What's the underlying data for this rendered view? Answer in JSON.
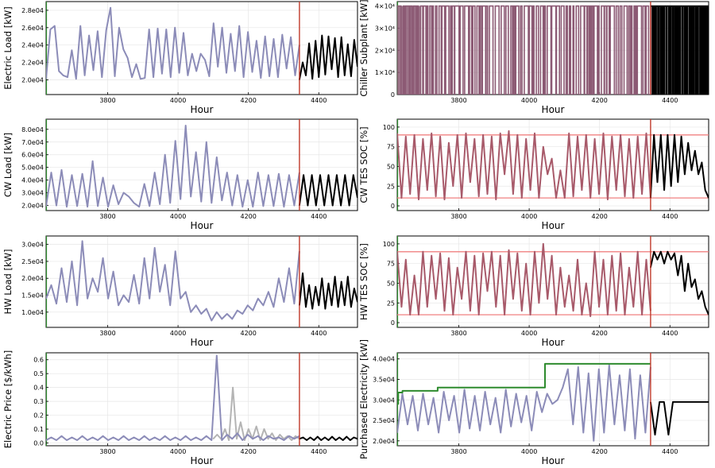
{
  "chart_data": [
    {
      "id": "electric-load",
      "type": "line",
      "ylabel": "Electric Load [kW]",
      "xlabel": "Hour",
      "xlim": [
        3625,
        4510
      ],
      "ylim": [
        18300,
        29000
      ],
      "xticks": [
        3800,
        4000,
        4200,
        4400
      ],
      "yticks": [
        20000,
        22000,
        24000,
        26000,
        28000
      ],
      "yticklabels": [
        "2.0e04",
        "2.2e04",
        "2.4e04",
        "2.6e04",
        "2.8e04"
      ],
      "vline": 4345,
      "series": [
        {
          "name": "history",
          "color": "#8c8cb8",
          "x_range": [
            3625,
            4345
          ],
          "y": [
            20100,
            25800,
            26200,
            21000,
            20500,
            20300,
            23400,
            20100,
            26200,
            20500,
            25100,
            21100,
            25600,
            20300,
            25700,
            28300,
            20400,
            26000,
            23500,
            22500,
            20300,
            21800,
            20100,
            20200,
            25800,
            20300,
            25900,
            20700,
            25800,
            20300,
            26000,
            20800,
            25400,
            20500,
            23000,
            21000,
            23000,
            22300,
            20400,
            26500,
            21500,
            26000,
            20800,
            25300,
            21000,
            26200,
            20300,
            25500,
            20900,
            24500,
            20200,
            25000,
            20400,
            24700,
            20300,
            25200,
            21300,
            24900,
            20500,
            24000
          ]
        },
        {
          "name": "forecast",
          "color": "#000000",
          "x_range": [
            4345,
            4510
          ],
          "y": [
            20000,
            22000,
            20500,
            24200,
            20100,
            24500,
            20300,
            25100,
            20600,
            25000,
            21200,
            24800,
            20300,
            24900,
            20500,
            24100,
            20400,
            24600,
            21500
          ]
        }
      ]
    },
    {
      "id": "chiller-subplant",
      "type": "step",
      "ylabel": "Chiller Subplant [kW]",
      "xlabel": "Hour",
      "xlim": [
        3625,
        4510
      ],
      "ylim": [
        0,
        42000
      ],
      "xticks": [
        3800,
        4000,
        4200,
        4400
      ],
      "yticks": [
        0,
        10000,
        20000,
        30000,
        40000
      ],
      "yticklabels": [
        "0",
        "1×10⁴",
        "2×10⁴",
        "3×10⁴",
        "4×10⁴"
      ],
      "vline": 4345,
      "series": [
        {
          "name": "history",
          "color": "#8c5a74",
          "x_range": [
            3625,
            4345
          ],
          "levels": [
            0,
            40000
          ]
        },
        {
          "name": "forecast",
          "color": "#000000",
          "x_range": [
            4345,
            4510
          ],
          "levels": [
            0,
            40000
          ]
        }
      ]
    },
    {
      "id": "cw-load",
      "type": "line",
      "ylabel": "CW Load [kW]",
      "xlabel": "Hour",
      "xlim": [
        3625,
        4510
      ],
      "ylim": [
        16000,
        88000
      ],
      "xticks": [
        3800,
        4000,
        4200,
        4400
      ],
      "yticks": [
        20000,
        30000,
        40000,
        50000,
        60000,
        70000,
        80000
      ],
      "yticklabels": [
        "2.0e04",
        "3.0e04",
        "4.0e04",
        "5.0e04",
        "6.0e04",
        "7.0e04",
        "8.0e04"
      ],
      "vline": 4345,
      "series": [
        {
          "name": "history",
          "color": "#8c8cb8",
          "x_range": [
            3625,
            4345
          ],
          "y": [
            19500,
            46000,
            20000,
            48000,
            19000,
            44000,
            19500,
            45000,
            19000,
            55000,
            19500,
            42000,
            19000,
            36000,
            21000,
            30000,
            27000,
            22000,
            19000,
            37000,
            19500,
            46000,
            21000,
            60000,
            22000,
            71000,
            25000,
            83000,
            27000,
            62000,
            23000,
            70000,
            22000,
            58000,
            24000,
            46000,
            20000,
            44000,
            19000,
            40000,
            19000,
            46000,
            19500,
            44000,
            19500,
            45000,
            19000,
            44000,
            20000,
            46000
          ]
        },
        {
          "name": "forecast",
          "color": "#000000",
          "x_range": [
            4345,
            4510
          ],
          "y": [
            20000,
            44000,
            20000,
            44000,
            20000,
            44000,
            20000,
            44000,
            20000,
            44000,
            20000,
            44000,
            20000,
            44000,
            26000
          ]
        }
      ]
    },
    {
      "id": "cw-tes-soc",
      "type": "line",
      "ylabel": "CW TES SOC [%]",
      "xlabel": "Hour",
      "xlim": [
        3625,
        4510
      ],
      "ylim": [
        -6,
        110
      ],
      "xticks": [
        3800,
        4000,
        4200,
        4400
      ],
      "yticks": [
        0,
        25,
        50,
        75,
        100
      ],
      "yticklabels": [
        "0",
        "25",
        "50",
        "75",
        "100"
      ],
      "vline": 4345,
      "hlines": [
        10,
        90
      ],
      "series": [
        {
          "name": "history",
          "color": "#a85a6a",
          "x_range": [
            3625,
            4345
          ],
          "y": [
            92,
            10,
            88,
            15,
            90,
            8,
            85,
            20,
            92,
            12,
            88,
            8,
            80,
            25,
            90,
            10,
            92,
            30,
            85,
            12,
            90,
            15,
            88,
            8,
            92,
            40,
            95,
            15,
            90,
            10,
            85,
            20,
            92,
            10,
            75,
            40,
            60,
            10,
            45,
            10,
            92,
            12,
            88,
            20,
            90,
            10,
            85,
            15,
            92,
            8,
            88,
            20,
            90,
            12,
            85,
            10,
            88,
            15,
            92,
            10
          ]
        },
        {
          "name": "forecast",
          "color": "#000000",
          "x_range": [
            4345,
            4510
          ],
          "y": [
            10,
            90,
            30,
            90,
            20,
            90,
            25,
            90,
            30,
            88,
            40,
            80,
            45,
            70,
            40,
            55,
            20,
            10
          ]
        }
      ]
    },
    {
      "id": "hw-load",
      "type": "line",
      "ylabel": "HW Load [kW]",
      "xlabel": "Hour",
      "xlim": [
        3625,
        4510
      ],
      "ylim": [
        5500,
        32500
      ],
      "xticks": [
        3800,
        4000,
        4200,
        4400
      ],
      "yticks": [
        10000,
        15000,
        20000,
        25000,
        30000
      ],
      "yticklabels": [
        "1.0e04",
        "1.5e04",
        "2.0e04",
        "2.5e04",
        "3.0e04"
      ],
      "vline": 4345,
      "series": [
        {
          "name": "history",
          "color": "#8c8cb8",
          "x_range": [
            3625,
            4345
          ],
          "y": [
            14000,
            18000,
            12500,
            23000,
            13000,
            25000,
            12000,
            31000,
            14000,
            20000,
            16000,
            26000,
            14000,
            22000,
            12000,
            15000,
            13000,
            21000,
            12500,
            26000,
            14000,
            29000,
            16000,
            24000,
            12000,
            28000,
            14000,
            16000,
            10000,
            12000,
            9500,
            11000,
            7500,
            10000,
            8000,
            9500,
            8000,
            10500,
            9500,
            12000,
            10500,
            14000,
            12000,
            16000,
            11500,
            20000,
            13000,
            23000,
            12500,
            28000
          ]
        },
        {
          "name": "forecast",
          "color": "#000000",
          "x_range": [
            4345,
            4510
          ],
          "y": [
            12000,
            21500,
            11500,
            18000,
            11000,
            17500,
            12000,
            20000,
            11000,
            18500,
            12000,
            20500,
            11500,
            19000,
            12000,
            20500,
            11500,
            17000,
            13000
          ]
        }
      ]
    },
    {
      "id": "hw-tes-soc",
      "type": "line",
      "ylabel": "HW TES SOC [%]",
      "xlabel": "Hour",
      "xlim": [
        3625,
        4510
      ],
      "ylim": [
        -6,
        110
      ],
      "xticks": [
        3800,
        4000,
        4200,
        4400
      ],
      "yticks": [
        0,
        25,
        50,
        75,
        100
      ],
      "yticklabels": [
        "0",
        "25",
        "50",
        "75",
        "100"
      ],
      "vline": 4345,
      "hlines": [
        10,
        90
      ],
      "series": [
        {
          "name": "history",
          "color": "#a85a6a",
          "x_range": [
            3625,
            4345
          ],
          "y": [
            90,
            20,
            80,
            10,
            60,
            10,
            90,
            20,
            85,
            30,
            88,
            15,
            82,
            10,
            70,
            30,
            90,
            15,
            85,
            10,
            88,
            40,
            90,
            20,
            85,
            10,
            92,
            30,
            88,
            15,
            75,
            10,
            90,
            25,
            100,
            30,
            85,
            10,
            70,
            20,
            60,
            15,
            80,
            10,
            50,
            8,
            90,
            20,
            80,
            10,
            85,
            15,
            88,
            10,
            70,
            20,
            90,
            10,
            80,
            15
          ]
        },
        {
          "name": "forecast",
          "color": "#000000",
          "x_range": [
            4345,
            4510
          ],
          "y": [
            70,
            90,
            80,
            90,
            75,
            90,
            80,
            88,
            60,
            85,
            40,
            75,
            45,
            55,
            30,
            40,
            20,
            10
          ]
        }
      ]
    },
    {
      "id": "electric-price",
      "type": "line",
      "ylabel": "Electric Price [$/kWh]",
      "xlabel": "Hour",
      "xlim": [
        3625,
        4510
      ],
      "ylim": [
        -0.02,
        0.65
      ],
      "xticks": [
        3800,
        4000,
        4200,
        4400
      ],
      "yticks": [
        0,
        0.1,
        0.2,
        0.3,
        0.4,
        0.5,
        0.6
      ],
      "yticklabels": [
        "0.0",
        "0.1",
        "0.2",
        "0.3",
        "0.4",
        "0.5",
        "0.6"
      ],
      "vline": 4345,
      "series": [
        {
          "name": "actual",
          "color": "#b4b4b4",
          "x_range": [
            4100,
            4345
          ],
          "y": [
            0.03,
            0.06,
            0.03,
            0.1,
            0.02,
            0.4,
            0.03,
            0.15,
            0.02,
            0.1,
            0.03,
            0.12,
            0.02,
            0.1,
            0.03,
            0.07,
            0.02,
            0.06,
            0.03,
            0.05,
            0.02,
            0.05,
            0.03
          ]
        },
        {
          "name": "history",
          "color": "#8c8cb8",
          "x_range": [
            3625,
            4345
          ],
          "y": [
            0.02,
            0.04,
            0.02,
            0.05,
            0.02,
            0.04,
            0.02,
            0.05,
            0.02,
            0.04,
            0.02,
            0.05,
            0.02,
            0.04,
            0.02,
            0.05,
            0.02,
            0.04,
            0.02,
            0.05,
            0.02,
            0.04,
            0.02,
            0.05,
            0.02,
            0.04,
            0.02,
            0.05,
            0.02,
            0.04,
            0.02,
            0.05,
            0.02,
            0.63,
            0.02,
            0.06,
            0.03,
            0.07,
            0.02,
            0.06,
            0.03,
            0.05,
            0.02,
            0.05,
            0.03,
            0.04,
            0.02,
            0.05,
            0.03,
            0.05
          ]
        },
        {
          "name": "forecast",
          "color": "#000000",
          "x_range": [
            4345,
            4510
          ],
          "y": [
            0.03,
            0.04,
            0.02,
            0.04,
            0.02,
            0.045,
            0.02,
            0.04,
            0.02,
            0.045,
            0.02,
            0.04,
            0.02,
            0.045,
            0.02,
            0.04,
            0.03
          ]
        }
      ]
    },
    {
      "id": "purchased-electricity",
      "type": "line",
      "ylabel": "Purchased Electricity [kW]",
      "xlabel": "Hour",
      "xlim": [
        3625,
        4510
      ],
      "ylim": [
        18800,
        41500
      ],
      "xticks": [
        3800,
        4000,
        4200,
        4400
      ],
      "yticks": [
        20000,
        25000,
        30000,
        35000,
        40000
      ],
      "yticklabels": [
        "2.0e04",
        "2.5e04",
        "3.0e04",
        "3.5e04",
        "4.0e04"
      ],
      "vline": 4345,
      "series": [
        {
          "name": "history",
          "color": "#8c8cb8",
          "x_range": [
            3625,
            4345
          ],
          "y": [
            22000,
            31500,
            24000,
            31000,
            22500,
            31500,
            24000,
            30500,
            22000,
            32000,
            25000,
            31000,
            22000,
            32500,
            23000,
            31000,
            22500,
            32000,
            24000,
            30500,
            22000,
            32500,
            23500,
            31500,
            24500,
            31000,
            22500,
            32000,
            27000,
            31500,
            29000,
            30000,
            33000,
            37500,
            24000,
            38000,
            22000,
            36500,
            20000,
            37500,
            22000,
            38500,
            24000,
            36000,
            22500,
            37500,
            20500,
            36000,
            22000,
            38000
          ]
        },
        {
          "name": "peak-demand",
          "color": "#2e8b2e",
          "steps": [
            [
              3625,
              29000
            ],
            [
              3628,
              31800
            ],
            [
              3640,
              32200
            ],
            [
              3740,
              33000
            ],
            [
              4045,
              38800
            ],
            [
              4345,
              38800
            ]
          ]
        },
        {
          "name": "forecast",
          "color": "#000000",
          "x_range": [
            4345,
            4510
          ],
          "y": [
            29500,
            21500,
            29500,
            29500,
            21500,
            29500,
            29500,
            29500,
            29500,
            29500,
            29500,
            29500,
            29500,
            29500
          ]
        }
      ]
    }
  ]
}
